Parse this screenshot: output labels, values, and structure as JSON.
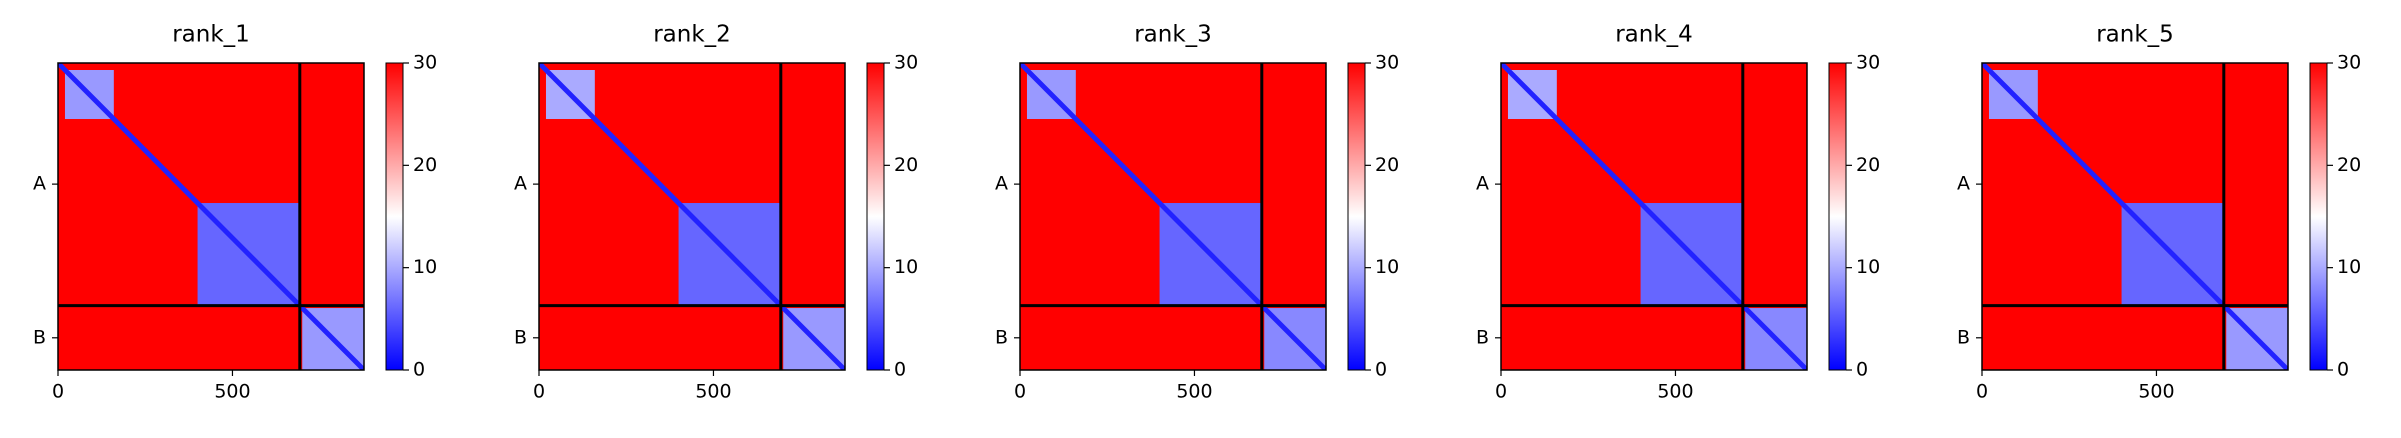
{
  "chart_data": [
    {
      "type": "heatmap",
      "title": "rank_1",
      "colormap": "bwr",
      "xlim": [
        0,
        877
      ],
      "ylim": [
        877,
        0
      ],
      "xticks": [
        0,
        500
      ],
      "yticks": [
        {
          "value": 346,
          "label": "A"
        },
        {
          "value": 785,
          "label": "B"
        }
      ],
      "clim": [
        0,
        30
      ],
      "cticks": [
        0,
        10,
        20,
        30
      ],
      "background_value": 30,
      "chain_boundary": 693,
      "diagonal_value": 2,
      "regions": [
        {
          "x": [
            20,
            160
          ],
          "y": [
            20,
            160
          ],
          "value": 9
        },
        {
          "x": [
            400,
            693
          ],
          "y": [
            400,
            693
          ],
          "value": 6
        },
        {
          "x": [
            700,
            877
          ],
          "y": [
            700,
            877
          ],
          "value": 9
        }
      ]
    },
    {
      "type": "heatmap",
      "title": "rank_2",
      "colormap": "bwr",
      "xlim": [
        0,
        877
      ],
      "ylim": [
        877,
        0
      ],
      "xticks": [
        0,
        500
      ],
      "yticks": [
        {
          "value": 346,
          "label": "A"
        },
        {
          "value": 785,
          "label": "B"
        }
      ],
      "clim": [
        0,
        30
      ],
      "cticks": [
        0,
        10,
        20,
        30
      ],
      "background_value": 30,
      "chain_boundary": 693,
      "diagonal_value": 2,
      "regions": [
        {
          "x": [
            20,
            160
          ],
          "y": [
            20,
            160
          ],
          "value": 10
        },
        {
          "x": [
            400,
            693
          ],
          "y": [
            400,
            693
          ],
          "value": 6
        },
        {
          "x": [
            700,
            877
          ],
          "y": [
            700,
            877
          ],
          "value": 9
        }
      ]
    },
    {
      "type": "heatmap",
      "title": "rank_3",
      "colormap": "bwr",
      "xlim": [
        0,
        877
      ],
      "ylim": [
        877,
        0
      ],
      "xticks": [
        0,
        500
      ],
      "yticks": [
        {
          "value": 346,
          "label": "A"
        },
        {
          "value": 785,
          "label": "B"
        }
      ],
      "clim": [
        0,
        30
      ],
      "cticks": [
        0,
        10,
        20,
        30
      ],
      "background_value": 30,
      "chain_boundary": 693,
      "diagonal_value": 2,
      "regions": [
        {
          "x": [
            20,
            160
          ],
          "y": [
            20,
            160
          ],
          "value": 9
        },
        {
          "x": [
            400,
            693
          ],
          "y": [
            400,
            693
          ],
          "value": 6
        },
        {
          "x": [
            700,
            877
          ],
          "y": [
            700,
            877
          ],
          "value": 8
        }
      ]
    },
    {
      "type": "heatmap",
      "title": "rank_4",
      "colormap": "bwr",
      "xlim": [
        0,
        877
      ],
      "ylim": [
        877,
        0
      ],
      "xticks": [
        0,
        500
      ],
      "yticks": [
        {
          "value": 346,
          "label": "A"
        },
        {
          "value": 785,
          "label": "B"
        }
      ],
      "clim": [
        0,
        30
      ],
      "cticks": [
        0,
        10,
        20,
        30
      ],
      "background_value": 30,
      "chain_boundary": 693,
      "diagonal_value": 2,
      "regions": [
        {
          "x": [
            20,
            160
          ],
          "y": [
            20,
            160
          ],
          "value": 10
        },
        {
          "x": [
            400,
            693
          ],
          "y": [
            400,
            693
          ],
          "value": 6
        },
        {
          "x": [
            700,
            877
          ],
          "y": [
            700,
            877
          ],
          "value": 8
        }
      ]
    },
    {
      "type": "heatmap",
      "title": "rank_5",
      "colormap": "bwr",
      "xlim": [
        0,
        877
      ],
      "ylim": [
        877,
        0
      ],
      "xticks": [
        0,
        500
      ],
      "yticks": [
        {
          "value": 346,
          "label": "A"
        },
        {
          "value": 785,
          "label": "B"
        }
      ],
      "clim": [
        0,
        30
      ],
      "cticks": [
        0,
        10,
        20,
        30
      ],
      "background_value": 30,
      "chain_boundary": 693,
      "diagonal_value": 2,
      "regions": [
        {
          "x": [
            20,
            160
          ],
          "y": [
            20,
            160
          ],
          "value": 9
        },
        {
          "x": [
            400,
            693
          ],
          "y": [
            400,
            693
          ],
          "value": 6
        },
        {
          "x": [
            700,
            877
          ],
          "y": [
            700,
            877
          ],
          "value": 9
        }
      ]
    }
  ]
}
